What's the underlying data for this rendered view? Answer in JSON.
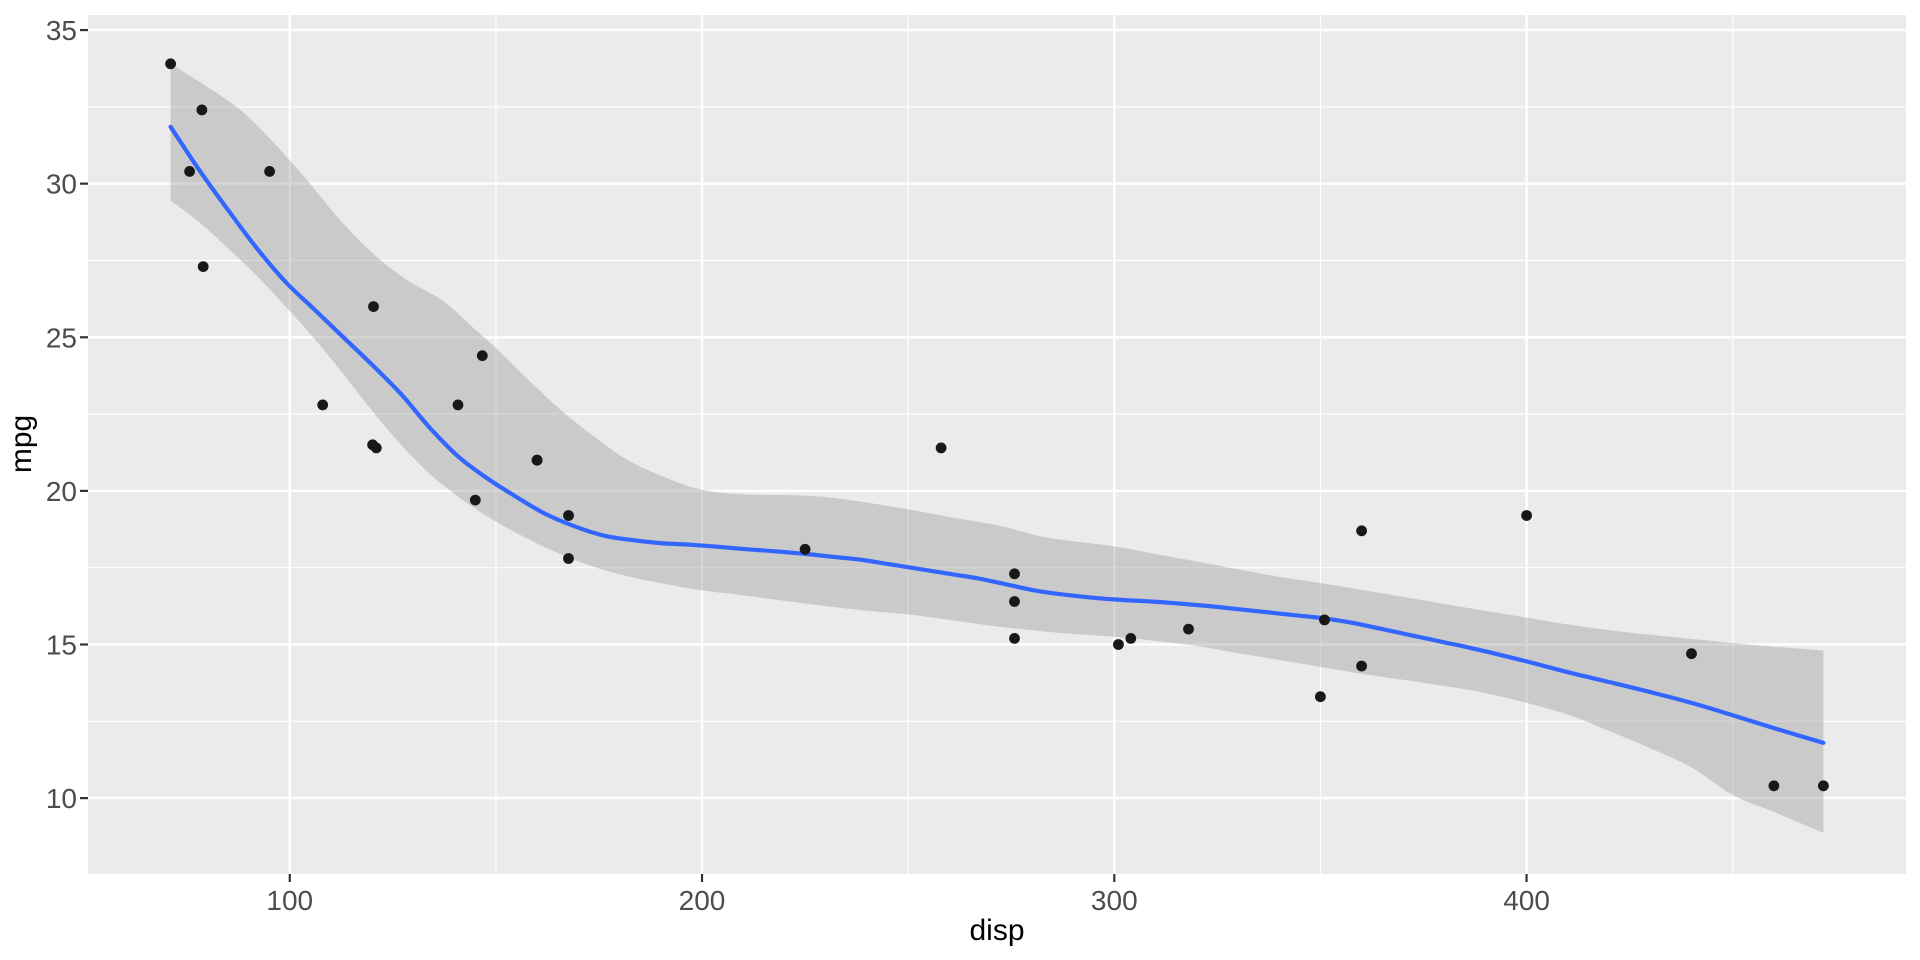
{
  "chart_data": {
    "type": "scatter",
    "title": "",
    "xlabel": "disp",
    "ylabel": "mpg",
    "legend": "none",
    "grid": true,
    "x_domain": [
      51.06,
      492.04
    ],
    "y_domain": [
      7.53,
      35.49
    ],
    "x_ticks": [
      100,
      200,
      300,
      400
    ],
    "x_minor_ticks": [
      150,
      250,
      350,
      450
    ],
    "y_ticks": [
      10,
      15,
      20,
      25,
      30,
      35
    ],
    "y_minor_ticks": [
      12.5,
      17.5,
      22.5,
      27.5,
      32.5
    ],
    "points": [
      [
        160,
        21.0
      ],
      [
        160,
        21.0
      ],
      [
        108,
        22.8
      ],
      [
        258,
        21.4
      ],
      [
        360,
        18.7
      ],
      [
        225,
        18.1
      ],
      [
        360,
        14.3
      ],
      [
        146.7,
        24.4
      ],
      [
        140.8,
        22.8
      ],
      [
        167.6,
        19.2
      ],
      [
        167.6,
        17.8
      ],
      [
        275.8,
        16.4
      ],
      [
        275.8,
        17.3
      ],
      [
        275.8,
        15.2
      ],
      [
        472,
        10.4
      ],
      [
        460,
        10.4
      ],
      [
        440,
        14.7
      ],
      [
        78.7,
        32.4
      ],
      [
        75.7,
        30.4
      ],
      [
        71.1,
        33.9
      ],
      [
        120.1,
        21.5
      ],
      [
        318,
        15.5
      ],
      [
        304,
        15.2
      ],
      [
        350,
        13.3
      ],
      [
        400,
        19.2
      ],
      [
        79,
        27.3
      ],
      [
        120.3,
        26.0
      ],
      [
        95.1,
        30.4
      ],
      [
        351,
        15.8
      ],
      [
        145,
        19.7
      ],
      [
        301,
        15.0
      ],
      [
        121,
        21.4
      ]
    ],
    "smooth_line": [
      [
        71.1,
        31.85
      ],
      [
        78,
        30.45
      ],
      [
        85,
        29.15
      ],
      [
        92,
        27.9
      ],
      [
        99,
        26.8
      ],
      [
        106,
        25.9
      ],
      [
        113,
        25.0
      ],
      [
        120,
        24.1
      ],
      [
        127,
        23.15
      ],
      [
        134,
        22.05
      ],
      [
        141,
        21.1
      ],
      [
        148,
        20.4
      ],
      [
        155,
        19.8
      ],
      [
        162,
        19.25
      ],
      [
        169,
        18.85
      ],
      [
        176,
        18.55
      ],
      [
        183,
        18.4
      ],
      [
        190,
        18.3
      ],
      [
        197,
        18.25
      ],
      [
        204,
        18.18
      ],
      [
        211,
        18.1
      ],
      [
        218,
        18.03
      ],
      [
        225,
        17.95
      ],
      [
        232,
        17.85
      ],
      [
        239,
        17.75
      ],
      [
        246,
        17.6
      ],
      [
        253,
        17.45
      ],
      [
        260,
        17.3
      ],
      [
        267,
        17.15
      ],
      [
        274,
        16.95
      ],
      [
        281,
        16.75
      ],
      [
        288,
        16.62
      ],
      [
        295,
        16.52
      ],
      [
        302,
        16.45
      ],
      [
        309,
        16.4
      ],
      [
        316,
        16.33
      ],
      [
        323,
        16.25
      ],
      [
        330,
        16.15
      ],
      [
        337,
        16.05
      ],
      [
        344,
        15.95
      ],
      [
        351,
        15.85
      ],
      [
        358,
        15.7
      ],
      [
        365,
        15.5
      ],
      [
        372,
        15.3
      ],
      [
        379,
        15.1
      ],
      [
        386,
        14.9
      ],
      [
        393,
        14.68
      ],
      [
        400,
        14.45
      ],
      [
        410,
        14.1
      ],
      [
        420,
        13.78
      ],
      [
        430,
        13.45
      ],
      [
        440,
        13.1
      ],
      [
        450,
        12.7
      ],
      [
        460,
        12.28
      ],
      [
        472,
        11.8
      ]
    ],
    "ribbon_upper": [
      [
        71.1,
        33.9
      ],
      [
        80,
        33.15
      ],
      [
        88,
        32.4
      ],
      [
        96,
        31.35
      ],
      [
        104,
        30.15
      ],
      [
        112,
        28.85
      ],
      [
        120,
        27.75
      ],
      [
        128,
        26.9
      ],
      [
        137,
        26.2
      ],
      [
        145,
        25.25
      ],
      [
        150,
        24.65
      ],
      [
        158,
        23.6
      ],
      [
        166,
        22.6
      ],
      [
        174,
        21.75
      ],
      [
        182,
        21.0
      ],
      [
        190,
        20.5
      ],
      [
        198,
        20.1
      ],
      [
        206,
        19.92
      ],
      [
        214,
        19.87
      ],
      [
        222,
        19.86
      ],
      [
        230,
        19.8
      ],
      [
        240,
        19.62
      ],
      [
        250,
        19.4
      ],
      [
        260,
        19.15
      ],
      [
        272,
        18.87
      ],
      [
        283,
        18.5
      ],
      [
        295,
        18.28
      ],
      [
        300,
        18.2
      ],
      [
        311,
        17.92
      ],
      [
        320,
        17.7
      ],
      [
        330,
        17.45
      ],
      [
        340,
        17.2
      ],
      [
        350,
        17.0
      ],
      [
        360,
        16.78
      ],
      [
        370,
        16.55
      ],
      [
        380,
        16.32
      ],
      [
        389,
        16.12
      ],
      [
        400,
        15.88
      ],
      [
        410,
        15.65
      ],
      [
        423,
        15.42
      ],
      [
        435,
        15.25
      ],
      [
        450,
        15.05
      ],
      [
        460,
        14.93
      ],
      [
        472,
        14.8
      ]
    ],
    "ribbon_lower": [
      [
        71.1,
        29.45
      ],
      [
        78,
        28.75
      ],
      [
        85,
        27.9
      ],
      [
        92,
        27.0
      ],
      [
        99,
        26.0
      ],
      [
        106,
        24.95
      ],
      [
        113,
        23.8
      ],
      [
        120,
        22.6
      ],
      [
        127,
        21.5
      ],
      [
        134,
        20.55
      ],
      [
        142,
        19.7
      ],
      [
        150,
        19.0
      ],
      [
        158,
        18.42
      ],
      [
        166,
        17.92
      ],
      [
        174,
        17.52
      ],
      [
        182,
        17.22
      ],
      [
        190,
        17.0
      ],
      [
        199,
        16.78
      ],
      [
        210,
        16.6
      ],
      [
        220,
        16.42
      ],
      [
        230,
        16.25
      ],
      [
        240,
        16.1
      ],
      [
        250,
        15.98
      ],
      [
        260,
        15.8
      ],
      [
        272,
        15.58
      ],
      [
        285,
        15.4
      ],
      [
        300,
        15.25
      ],
      [
        311,
        15.1
      ],
      [
        320,
        14.95
      ],
      [
        330,
        14.72
      ],
      [
        340,
        14.5
      ],
      [
        350,
        14.27
      ],
      [
        360,
        14.05
      ],
      [
        370,
        13.85
      ],
      [
        380,
        13.65
      ],
      [
        389,
        13.45
      ],
      [
        400,
        13.1
      ],
      [
        410,
        12.72
      ],
      [
        418,
        12.3
      ],
      [
        430,
        11.62
      ],
      [
        440,
        11.0
      ],
      [
        450,
        10.1
      ],
      [
        460,
        9.55
      ],
      [
        472,
        8.87
      ]
    ],
    "colors": {
      "outer_bg": "#FFFFFF",
      "panel_bg": "#EBEBEB",
      "grid": "#FFFFFF",
      "ribbon": "#999999",
      "ribbon_opacity": 0.4,
      "smooth_line": "#3366FF",
      "point": "#181818",
      "tick_label": "#4D4D4D",
      "tick_mark": "#333333",
      "axis_title": "#000000"
    }
  }
}
